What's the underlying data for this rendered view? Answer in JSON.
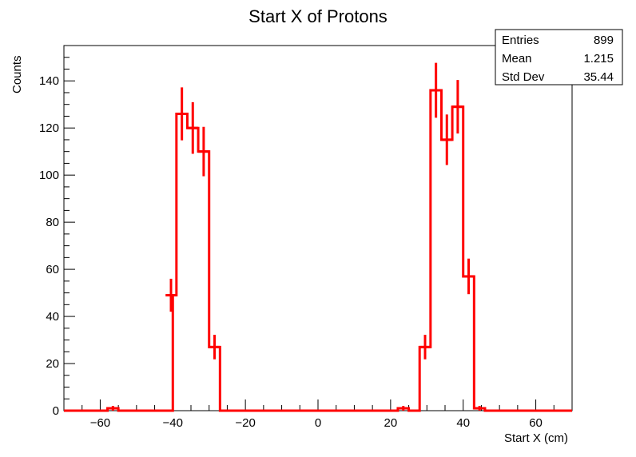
{
  "chart_data": {
    "type": "histogram",
    "title": "Start X of Protons",
    "xlabel": "Start X (cm)",
    "ylabel": "Counts",
    "xlim": [
      -70,
      70
    ],
    "ylim": [
      0,
      155
    ],
    "xticks": [
      -60,
      -40,
      -20,
      0,
      20,
      40,
      60
    ],
    "yticks": [
      0,
      20,
      40,
      60,
      80,
      100,
      120,
      140
    ],
    "color": "#ff0000",
    "bin_width": 3,
    "bins": [
      {
        "x0": -58,
        "count": 1
      },
      {
        "x0": -55,
        "count": 0
      },
      {
        "x0": -52,
        "count": 0
      },
      {
        "x0": -49,
        "count": 0
      },
      {
        "x0": -46,
        "count": 0
      },
      {
        "x0": -43,
        "count": 0
      },
      {
        "x0": -42,
        "count": 49
      },
      {
        "x0": -39,
        "count": 126
      },
      {
        "x0": -36,
        "count": 120
      },
      {
        "x0": -33,
        "count": 110
      },
      {
        "x0": -30,
        "count": 27
      },
      {
        "x0": -27,
        "count": 0
      },
      {
        "x0": 22,
        "count": 1
      },
      {
        "x0": 25,
        "count": 0
      },
      {
        "x0": 28,
        "count": 27
      },
      {
        "x0": 31,
        "count": 136
      },
      {
        "x0": 34,
        "count": 115
      },
      {
        "x0": 37,
        "count": 129
      },
      {
        "x0": 40,
        "count": 57
      },
      {
        "x0": 43,
        "count": 1
      }
    ],
    "stats": {
      "entries_label": "Entries",
      "entries": "899",
      "mean_label": "Mean",
      "mean": "1.215",
      "stddev_label": "Std Dev",
      "stddev": "35.44"
    }
  }
}
